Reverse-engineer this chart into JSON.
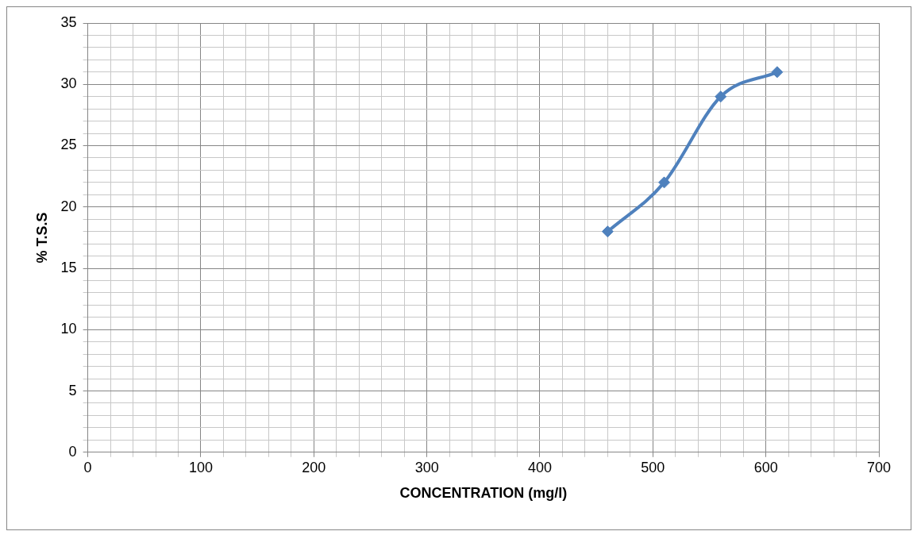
{
  "chart_data": {
    "type": "line",
    "xlabel": "CONCENTRATION (mg/l)",
    "ylabel": "% T.S.S",
    "x": [
      460,
      510,
      560,
      610
    ],
    "series": [
      {
        "color": "#4f81bd",
        "values": [
          18,
          22,
          29,
          31
        ]
      }
    ],
    "xlim": [
      0,
      700
    ],
    "xticks": [
      0,
      {
        "value": 20,
        "label": null
      },
      {
        "value": 40,
        "label": null
      },
      {
        "value": 60,
        "label": null
      },
      {
        "value": 80,
        "label": null
      },
      100,
      {
        "value": 120,
        "label": null
      },
      {
        "value": 140,
        "label": null
      },
      {
        "value": 160,
        "label": null
      },
      {
        "value": 180,
        "label": null
      },
      200,
      {
        "value": 220,
        "label": null
      },
      {
        "value": 240,
        "label": null
      },
      {
        "value": 260,
        "label": null
      },
      {
        "value": 280,
        "label": null
      },
      300,
      {
        "value": 320,
        "label": null
      },
      {
        "value": 340,
        "label": null
      },
      {
        "value": 360,
        "label": null
      },
      {
        "value": 380,
        "label": null
      },
      400,
      {
        "value": 420,
        "label": null
      },
      {
        "value": 440,
        "label": null
      },
      {
        "value": 460,
        "label": null
      },
      {
        "value": 480,
        "label": null
      },
      500,
      {
        "value": 520,
        "label": null
      },
      {
        "value": 540,
        "label": null
      },
      {
        "value": 560,
        "label": null
      },
      {
        "value": 580,
        "label": null
      },
      600,
      {
        "value": 620,
        "label": null
      },
      {
        "value": 640,
        "label": null
      },
      {
        "value": 660,
        "label": null
      },
      {
        "value": 680,
        "label": null
      },
      700
    ],
    "ylim": [
      0,
      35
    ],
    "yticks": [
      0,
      {
        "value": 1,
        "label": null
      },
      {
        "value": 2,
        "label": null
      },
      {
        "value": 3,
        "label": null
      },
      {
        "value": 4,
        "label": null
      },
      5,
      {
        "value": 6,
        "label": null
      },
      {
        "value": 7,
        "label": null
      },
      {
        "value": 8,
        "label": null
      },
      {
        "value": 9,
        "label": null
      },
      10,
      {
        "value": 11,
        "label": null
      },
      {
        "value": 12,
        "label": null
      },
      {
        "value": 13,
        "label": null
      },
      {
        "value": 14,
        "label": null
      },
      15,
      {
        "value": 16,
        "label": null
      },
      {
        "value": 17,
        "label": null
      },
      {
        "value": 18,
        "label": null
      },
      {
        "value": 19,
        "label": null
      },
      20,
      {
        "value": 21,
        "label": null
      },
      {
        "value": 22,
        "label": null
      },
      {
        "value": 23,
        "label": null
      },
      {
        "value": 24,
        "label": null
      },
      25,
      {
        "value": 26,
        "label": null
      },
      {
        "value": 27,
        "label": null
      },
      {
        "value": 28,
        "label": null
      },
      {
        "value": 29,
        "label": null
      },
      30,
      {
        "value": 31,
        "label": null
      },
      {
        "value": 32,
        "label": null
      },
      {
        "value": 33,
        "label": null
      },
      {
        "value": 34,
        "label": null
      },
      35
    ],
    "grid": true,
    "marker": "diamond",
    "line_style": "solid",
    "legend": false
  }
}
